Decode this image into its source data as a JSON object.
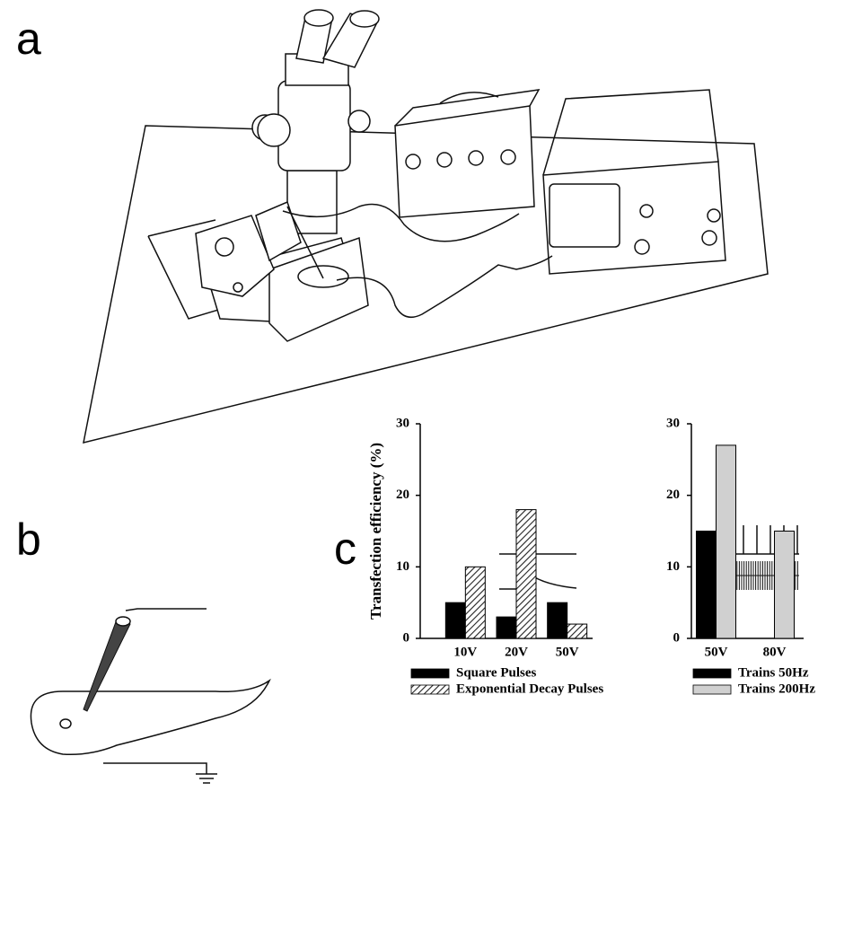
{
  "panels": [
    "a",
    "b",
    "c"
  ],
  "chart_data": [
    {
      "type": "bar",
      "ylabel": "Transfection efficiency (%)",
      "categories": [
        "10V",
        "20V",
        "50V"
      ],
      "series": [
        {
          "name": "Square Pulses",
          "color": "#000000",
          "hatch": false,
          "values": [
            5,
            3,
            5
          ]
        },
        {
          "name": "Exponential Decay Pulses",
          "color": "#444444",
          "hatch": true,
          "values": [
            10,
            18,
            2
          ]
        }
      ],
      "ylim": [
        0,
        30
      ],
      "yticks": [
        0,
        10,
        20,
        30
      ]
    },
    {
      "type": "bar",
      "categories": [
        "50V",
        "80V"
      ],
      "series": [
        {
          "name": "Trains 50Hz",
          "color": "#000000",
          "hatch": false,
          "values": [
            15,
            null
          ]
        },
        {
          "name": "Trains 200Hz",
          "color": "#d0d0d0",
          "hatch": false,
          "values": [
            27,
            15
          ]
        }
      ],
      "ylim": [
        0,
        30
      ],
      "yticks": [
        0,
        10,
        20,
        30
      ]
    }
  ]
}
